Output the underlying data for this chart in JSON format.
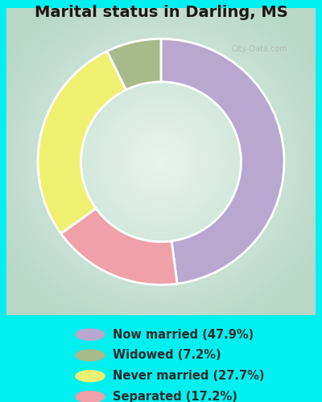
{
  "title": "Marital status in Darling, MS",
  "categories": [
    "Now married (47.9%)",
    "Widowed (7.2%)",
    "Never married (27.7%)",
    "Separated (17.2%)"
  ],
  "values": [
    47.9,
    7.2,
    27.7,
    17.2
  ],
  "colors": [
    "#b8a8d0",
    "#a8ba8a",
    "#f0f070",
    "#f0a0a8"
  ],
  "outer_bg": "#00f0f0",
  "chart_bg_outer": "#b8d8c8",
  "chart_bg_inner": "#e8f4ee",
  "title_fontsize": 14,
  "legend_fontsize": 10.5,
  "watermark": "City-Data.com",
  "wedge_order": [
    0,
    3,
    2,
    1
  ],
  "start_angle": 90
}
